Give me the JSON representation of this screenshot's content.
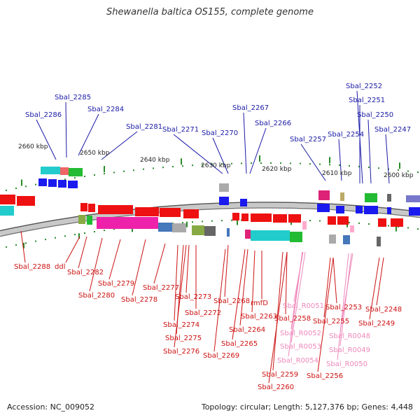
{
  "title": "Shewanella baltica OS155, complete genome",
  "footer": {
    "accession": "Accession: NC_009052",
    "summary": "Topology: circular; Length: 5,127,376 bp; Genes: 4,448"
  },
  "colors": {
    "forward_label": "#1a1aa6",
    "reverse_label": "#cc1111",
    "rna_label": "#ee88bb",
    "backbone": "#c8c8c8",
    "tick": "#2a8a2a"
  },
  "kbp_labels": [
    "2660 kbp",
    "2650 kbp",
    "2640 kbp",
    "2630 kbp",
    "2620 kbp",
    "2610 kbp",
    "2600 kbp"
  ],
  "forward_labels": [
    "Sbal_2285",
    "Sbal_2286",
    "Sbal_2284",
    "Sbal_2281",
    "Sbal_2271",
    "Sbal_2270",
    "Sbal_2267",
    "Sbal_2266",
    "Sbal_2257",
    "Sbal_2254",
    "Sbal_2252",
    "Sbal_2251",
    "Sbal_2250",
    "Sbal_2247"
  ],
  "reverse_labels": [
    "Sbal_2288",
    "ddl",
    "Sbal_2282",
    "Sbal_2279",
    "Sbal_2280",
    "Sbal_2278",
    "Sbal_2277",
    "Sbal_2273",
    "Sbal_2272",
    "Sbal_2274",
    "Sbal_2275",
    "Sbal_2276",
    "Sbal_2268",
    "rmfD",
    "Sbal_2263",
    "Sbal_2264",
    "Sbal_2265",
    "Sbal_2269",
    "Sbal_2258",
    "Sbal_2259",
    "Sbal_2260",
    "Sbal_2253",
    "Sbal_2255",
    "Sbal_2256",
    "Sbal_2248",
    "Sbal_2249"
  ],
  "rna_labels": [
    "Sbal_R0051",
    "Sbal_R0052",
    "Sbal_R0053",
    "Sbal_R0054",
    "Sbal_R0048",
    "Sbal_R0049",
    "Sbal_R0050"
  ]
}
